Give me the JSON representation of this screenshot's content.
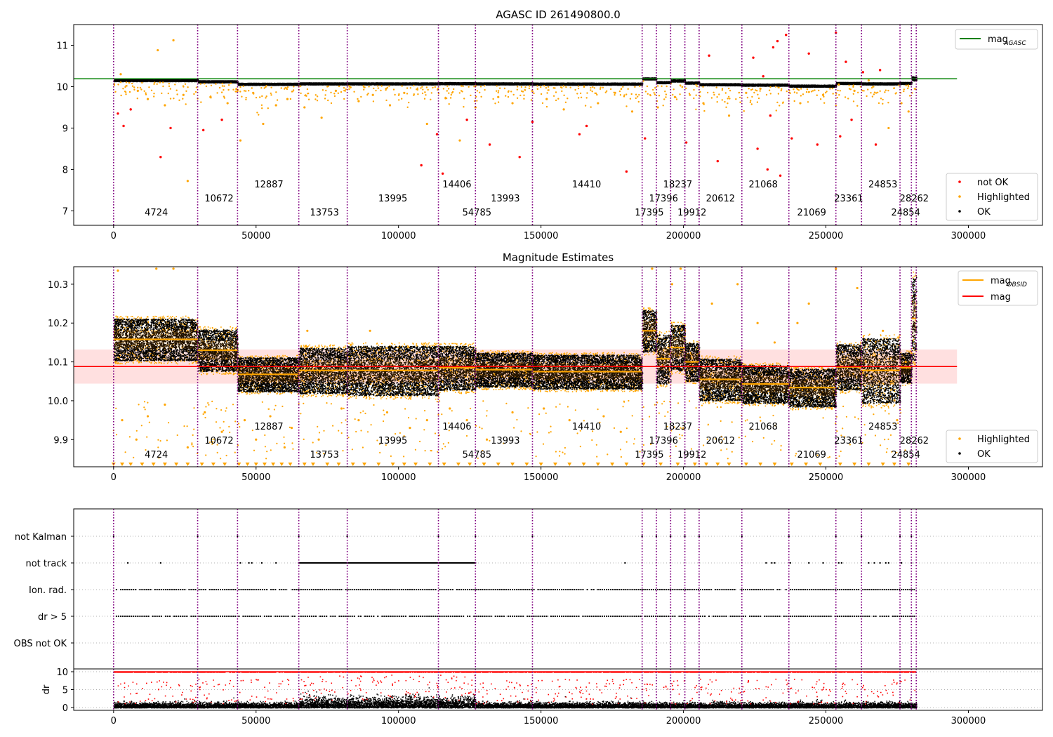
{
  "figure": {
    "panel1_title": "AGASC ID 261490800.0",
    "panel2_title": "Magnitude Estimates"
  },
  "obs_boundaries": [
    0,
    29500,
    43500,
    65000,
    82000,
    114000,
    127000,
    147000,
    185500,
    190500,
    195500,
    200500,
    205500,
    220500,
    237000,
    253500,
    262500,
    276000,
    280000,
    281700
  ],
  "obs_labels": [
    {
      "text": "4724",
      "x": 15000,
      "row": 0
    },
    {
      "text": "10672",
      "x": 37000,
      "row": 1
    },
    {
      "text": "12887",
      "x": 54500,
      "row": 2
    },
    {
      "text": "13753",
      "x": 74000,
      "row": 0
    },
    {
      "text": "13995",
      "x": 98000,
      "row": 1
    },
    {
      "text": "14406",
      "x": 120500,
      "row": 2
    },
    {
      "text": "54785",
      "x": 127500,
      "row": 0
    },
    {
      "text": "13993",
      "x": 137500,
      "row": 1
    },
    {
      "text": "14410",
      "x": 166000,
      "row": 2
    },
    {
      "text": "17395",
      "x": 188000,
      "row": 0
    },
    {
      "text": "17396",
      "x": 193000,
      "row": 1
    },
    {
      "text": "18237",
      "x": 198000,
      "row": 2
    },
    {
      "text": "19912",
      "x": 203000,
      "row": 0
    },
    {
      "text": "20612",
      "x": 213000,
      "row": 1
    },
    {
      "text": "21068",
      "x": 228000,
      "row": 2
    },
    {
      "text": "21069",
      "x": 245000,
      "row": 0
    },
    {
      "text": "23361",
      "x": 258000,
      "row": 1
    },
    {
      "text": "24853",
      "x": 270000,
      "row": 2
    },
    {
      "text": "24854",
      "x": 278000,
      "row": 0
    },
    {
      "text": "28262",
      "x": 281000,
      "row": 1
    }
  ],
  "chart_data": [
    {
      "type": "scatter",
      "title": "AGASC ID 261490800.0",
      "xlabel": "",
      "ylabel": "",
      "xlim": [
        -14000,
        326000
      ],
      "ylim": [
        6.65,
        11.5
      ],
      "xticks": [
        "0",
        "50000",
        "100000",
        "150000",
        "200000",
        "250000",
        "300000"
      ],
      "yticks": [
        "7",
        "8",
        "9",
        "10",
        "11"
      ],
      "grid": false,
      "legend_placement": "top-right and bottom-right",
      "legends": {
        "lines": [
          {
            "name": "mag",
            "sub": "AGASC",
            "color": "#008000"
          }
        ],
        "points": [
          {
            "name": "not OK",
            "color": "#ff0000"
          },
          {
            "name": "Highlighted",
            "color": "#ffa500"
          },
          {
            "name": "OK",
            "color": "#000000"
          }
        ]
      },
      "mag_agasc": 10.19,
      "mag_agasc_x_range": [
        -14000,
        296000
      ],
      "segments": [
        {
          "x": [
            0,
            29500
          ],
          "mean": 10.16,
          "sd": 0.03
        },
        {
          "x": [
            29500,
            43500
          ],
          "mean": 10.13,
          "sd": 0.03
        },
        {
          "x": [
            43500,
            65000
          ],
          "mean": 10.07,
          "sd": 0.03
        },
        {
          "x": [
            65000,
            82000
          ],
          "mean": 10.08,
          "sd": 0.03
        },
        {
          "x": [
            82000,
            114000
          ],
          "mean": 10.08,
          "sd": 0.03
        },
        {
          "x": [
            114000,
            127000
          ],
          "mean": 10.085,
          "sd": 0.03
        },
        {
          "x": [
            127000,
            147000
          ],
          "mean": 10.08,
          "sd": 0.03
        },
        {
          "x": [
            147000,
            185500
          ],
          "mean": 10.075,
          "sd": 0.03
        },
        {
          "x": [
            185500,
            190500
          ],
          "mean": 10.2,
          "sd": 0.03
        },
        {
          "x": [
            190500,
            195500
          ],
          "mean": 10.11,
          "sd": 0.03
        },
        {
          "x": [
            195500,
            200500
          ],
          "mean": 10.15,
          "sd": 0.03
        },
        {
          "x": [
            200500,
            205500
          ],
          "mean": 10.1,
          "sd": 0.03
        },
        {
          "x": [
            205500,
            220500
          ],
          "mean": 10.06,
          "sd": 0.03
        },
        {
          "x": [
            220500,
            237000
          ],
          "mean": 10.05,
          "sd": 0.03
        },
        {
          "x": [
            237000,
            253500
          ],
          "mean": 10.025,
          "sd": 0.03
        },
        {
          "x": [
            253500,
            262500
          ],
          "mean": 10.09,
          "sd": 0.03
        },
        {
          "x": [
            262500,
            276000
          ],
          "mean": 10.08,
          "sd": 0.03
        },
        {
          "x": [
            276000,
            280000
          ],
          "mean": 10.09,
          "sd": 0.03
        },
        {
          "x": [
            280000,
            281700
          ],
          "mean": 10.2,
          "sd": 0.06
        }
      ],
      "outliers_not_ok": [
        [
          1500,
          9.35
        ],
        [
          3500,
          9.05
        ],
        [
          6000,
          9.45
        ],
        [
          16500,
          8.3
        ],
        [
          20000,
          9.0
        ],
        [
          31500,
          8.95
        ],
        [
          38000,
          9.2
        ],
        [
          108000,
          8.1
        ],
        [
          113500,
          8.85
        ],
        [
          115500,
          7.9
        ],
        [
          124000,
          9.2
        ],
        [
          132000,
          8.6
        ],
        [
          142500,
          8.3
        ],
        [
          147000,
          9.15
        ],
        [
          163500,
          8.85
        ],
        [
          166000,
          9.05
        ],
        [
          180000,
          7.95
        ],
        [
          186500,
          8.75
        ],
        [
          201000,
          8.65
        ],
        [
          209000,
          10.75
        ],
        [
          212000,
          8.2
        ],
        [
          224500,
          10.7
        ],
        [
          226000,
          8.5
        ],
        [
          228000,
          10.25
        ],
        [
          229500,
          8.0
        ],
        [
          230500,
          9.3
        ],
        [
          231500,
          10.95
        ],
        [
          233000,
          11.1
        ],
        [
          234000,
          7.85
        ],
        [
          236000,
          11.25
        ],
        [
          238000,
          8.75
        ],
        [
          244000,
          10.8
        ],
        [
          247000,
          8.6
        ],
        [
          253500,
          11.3
        ],
        [
          255000,
          8.8
        ],
        [
          257000,
          10.6
        ],
        [
          259000,
          9.2
        ],
        [
          263000,
          10.35
        ],
        [
          267500,
          8.6
        ],
        [
          269000,
          10.4
        ]
      ],
      "outliers_highlighted": [
        [
          15500,
          10.88
        ],
        [
          21000,
          11.12
        ],
        [
          26000,
          7.72
        ],
        [
          2500,
          10.3
        ],
        [
          8500,
          9.9
        ],
        [
          12000,
          9.7
        ],
        [
          18000,
          9.55
        ],
        [
          24500,
          9.8
        ],
        [
          34000,
          9.75
        ],
        [
          40000,
          9.6
        ],
        [
          44500,
          8.7
        ],
        [
          49000,
          9.85
        ],
        [
          52500,
          9.1
        ],
        [
          57000,
          9.55
        ],
        [
          61000,
          9.7
        ],
        [
          67000,
          9.5
        ],
        [
          73000,
          9.25
        ],
        [
          78000,
          9.9
        ],
        [
          86000,
          9.65
        ],
        [
          91000,
          9.8
        ],
        [
          97000,
          9.55
        ],
        [
          102000,
          9.85
        ],
        [
          110000,
          9.1
        ],
        [
          121500,
          8.7
        ],
        [
          127000,
          9.5
        ],
        [
          135000,
          9.75
        ],
        [
          140000,
          9.6
        ],
        [
          152000,
          9.7
        ],
        [
          158000,
          9.45
        ],
        [
          170000,
          9.6
        ],
        [
          176000,
          9.85
        ],
        [
          182000,
          9.4
        ],
        [
          191000,
          9.5
        ],
        [
          197000,
          9.75
        ],
        [
          207000,
          9.6
        ],
        [
          216000,
          9.3
        ],
        [
          222000,
          9.85
        ],
        [
          227000,
          9.95
        ],
        [
          241000,
          9.6
        ],
        [
          249000,
          9.8
        ],
        [
          254500,
          10.05
        ],
        [
          260000,
          9.9
        ],
        [
          265000,
          10.15
        ],
        [
          272000,
          9.0
        ],
        [
          276500,
          9.6
        ],
        [
          279000,
          9.4
        ]
      ]
    },
    {
      "type": "scatter",
      "title": "Magnitude Estimates",
      "xlabel": "",
      "ylabel": "",
      "xlim": [
        -14000,
        326000
      ],
      "ylim": [
        9.83,
        10.345
      ],
      "xticks": [
        "0",
        "50000",
        "100000",
        "150000",
        "200000",
        "250000",
        "300000"
      ],
      "yticks": [
        "9.9",
        "10.0",
        "10.1",
        "10.2",
        "10.3"
      ],
      "grid": false,
      "legend_placement": "top-right and bottom-right",
      "legends": {
        "lines": [
          {
            "name": "mag",
            "sub": "OBSID",
            "color": "#ffa500"
          },
          {
            "name": "mag",
            "sub": "",
            "color": "#ff0000"
          }
        ],
        "points": [
          {
            "name": "Highlighted",
            "color": "#ffa500"
          },
          {
            "name": "OK",
            "color": "#000000"
          }
        ]
      },
      "mag": 10.088,
      "mag_band": [
        10.044,
        10.132
      ],
      "mag_x_range": [
        -14000,
        296000
      ],
      "segments": [
        {
          "x": [
            0,
            29500
          ],
          "mean": 10.158,
          "half": 0.055
        },
        {
          "x": [
            29500,
            43500
          ],
          "mean": 10.13,
          "half": 0.055
        },
        {
          "x": [
            43500,
            65000
          ],
          "mean": 10.068,
          "half": 0.045
        },
        {
          "x": [
            65000,
            82000
          ],
          "mean": 10.078,
          "half": 0.06
        },
        {
          "x": [
            82000,
            114000
          ],
          "mean": 10.078,
          "half": 0.065
        },
        {
          "x": [
            114000,
            127000
          ],
          "mean": 10.085,
          "half": 0.058
        },
        {
          "x": [
            127000,
            147000
          ],
          "mean": 10.08,
          "half": 0.045
        },
        {
          "x": [
            147000,
            185500
          ],
          "mean": 10.075,
          "half": 0.045
        },
        {
          "x": [
            185500,
            190500
          ],
          "mean": 10.18,
          "half": 0.055
        },
        {
          "x": [
            190500,
            195500
          ],
          "mean": 10.108,
          "half": 0.065
        },
        {
          "x": [
            195500,
            200500
          ],
          "mean": 10.137,
          "half": 0.06
        },
        {
          "x": [
            200500,
            205500
          ],
          "mean": 10.1,
          "half": 0.05
        },
        {
          "x": [
            205500,
            220500
          ],
          "mean": 10.055,
          "half": 0.055
        },
        {
          "x": [
            220500,
            237000
          ],
          "mean": 10.043,
          "half": 0.05
        },
        {
          "x": [
            237000,
            253500
          ],
          "mean": 10.034,
          "half": 0.05
        },
        {
          "x": [
            253500,
            262500
          ],
          "mean": 10.087,
          "half": 0.06
        },
        {
          "x": [
            262500,
            276000
          ],
          "mean": 10.078,
          "half": 0.085
        },
        {
          "x": [
            276000,
            280000
          ],
          "mean": 10.085,
          "half": 0.04
        },
        {
          "x": [
            280000,
            281700
          ],
          "mean": 10.212,
          "half": 0.11
        }
      ],
      "outliers_highlighted": [
        [
          1500,
          10.335
        ],
        [
          15000,
          10.34
        ],
        [
          21000,
          10.34
        ],
        [
          3000,
          9.95
        ],
        [
          8000,
          9.9
        ],
        [
          12000,
          9.96
        ],
        [
          18000,
          9.99
        ],
        [
          26000,
          9.88
        ],
        [
          32000,
          9.97
        ],
        [
          38000,
          9.92
        ],
        [
          46000,
          9.95
        ],
        [
          50000,
          9.9
        ],
        [
          55000,
          9.96
        ],
        [
          60000,
          9.88
        ],
        [
          62500,
          9.93
        ],
        [
          68000,
          10.18
        ],
        [
          72000,
          9.9
        ],
        [
          80000,
          9.98
        ],
        [
          86000,
          9.95
        ],
        [
          90000,
          10.18
        ],
        [
          96000,
          9.97
        ],
        [
          104000,
          9.93
        ],
        [
          110000,
          9.95
        ],
        [
          118000,
          9.98
        ],
        [
          124000,
          9.95
        ],
        [
          131000,
          9.9
        ],
        [
          140000,
          9.97
        ],
        [
          151000,
          9.98
        ],
        [
          160000,
          9.95
        ],
        [
          172000,
          9.96
        ],
        [
          178000,
          9.92
        ],
        [
          189000,
          10.34
        ],
        [
          196000,
          10.3
        ],
        [
          199000,
          10.34
        ],
        [
          210000,
          10.25
        ],
        [
          219000,
          10.3
        ],
        [
          226000,
          10.2
        ],
        [
          232000,
          10.15
        ],
        [
          240000,
          10.2
        ],
        [
          244000,
          10.25
        ],
        [
          253500,
          10.34
        ],
        [
          261000,
          10.29
        ],
        [
          270000,
          10.18
        ],
        [
          275000,
          9.95
        ],
        [
          278000,
          10.1
        ]
      ],
      "clipped_bottom_x": [
        0,
        3000,
        6000,
        10000,
        14000,
        18000,
        22000,
        26000,
        31000,
        35000,
        39000,
        44000,
        47000,
        50000,
        53000,
        56000,
        59000,
        62000,
        67000,
        70000,
        75000,
        79000,
        84000,
        88000,
        93000,
        98000,
        102000,
        106000,
        111000,
        116000,
        121000,
        125000,
        130000,
        135000,
        140000,
        145000,
        150000,
        155000,
        160000,
        165000,
        170000,
        175000,
        180000,
        186000,
        192000,
        198000,
        204000,
        208000,
        212000,
        216000,
        222000,
        227000,
        232000,
        238000,
        243000,
        248000,
        255000,
        260000,
        265000,
        270000,
        274000,
        279000
      ]
    },
    {
      "type": "scatter",
      "title": "",
      "xlabel": "",
      "ylabel": "",
      "xlim": [
        -14000,
        326000
      ],
      "categories": [
        "not Kalman",
        "not track",
        "Ion. rad.",
        "dr > 5",
        "OBS not OK"
      ],
      "grid": true,
      "not_kalman_x": [
        0,
        29500,
        43500,
        65000,
        82000,
        114000,
        127000,
        147000,
        185500,
        190500,
        195500,
        200500,
        205500,
        220500,
        237000,
        253500,
        262500,
        276000,
        280000
      ],
      "not_track_isolated_x": [
        5000,
        16500,
        44500,
        47500,
        48500,
        52000,
        57000,
        179500,
        229000,
        231000,
        232000,
        237500,
        244000,
        249000,
        254500,
        255500,
        265000,
        267000,
        269000,
        271000,
        272000,
        276500,
        280000
      ],
      "not_track_dense": [
        [
          65000,
          127000
        ]
      ],
      "dense_ion_rad": [
        [
          1000,
          29000
        ],
        [
          30000,
          43000
        ],
        [
          44000,
          281000
        ]
      ],
      "dense_dr5": [
        [
          1000,
          29000
        ],
        [
          30000,
          43000
        ],
        [
          44000,
          281000
        ]
      ]
    },
    {
      "type": "scatter",
      "title": "",
      "xlabel": "",
      "ylabel": "dr",
      "xlim": [
        -14000,
        326000
      ],
      "ylim": [
        -0.5,
        10.5
      ],
      "yticks": [
        "0",
        "5",
        "10"
      ],
      "grid": true,
      "red_line_y": 10,
      "red_line_x_range": [
        0,
        281700
      ]
    }
  ]
}
